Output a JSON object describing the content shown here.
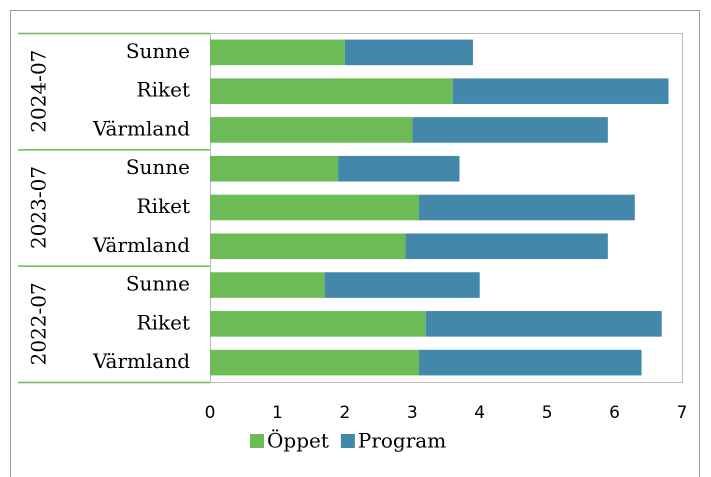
{
  "chart_data": {
    "type": "bar",
    "orientation": "horizontal",
    "stacked": true,
    "groups": [
      {
        "name": "2024-07",
        "categories": [
          "Sunne",
          "Riket",
          "Värmland"
        ]
      },
      {
        "name": "2023-07",
        "categories": [
          "Sunne",
          "Riket",
          "Värmland"
        ]
      },
      {
        "name": "2022-07",
        "categories": [
          "Sunne",
          "Riket",
          "Värmland"
        ]
      }
    ],
    "series": [
      {
        "name": "Öppet",
        "color": "#6dbb57",
        "values": [
          2.0,
          3.6,
          3.0,
          1.9,
          3.1,
          2.9,
          1.7,
          3.2,
          3.1
        ]
      },
      {
        "name": "Program",
        "color": "#4388aa",
        "values": [
          1.9,
          3.2,
          2.9,
          1.8,
          3.2,
          3.0,
          2.3,
          3.5,
          3.3
        ]
      }
    ],
    "xlim": [
      0,
      7
    ],
    "xticks": [
      0,
      1,
      2,
      3,
      4,
      5,
      6,
      7
    ],
    "grid": false,
    "legend": "bottom"
  }
}
